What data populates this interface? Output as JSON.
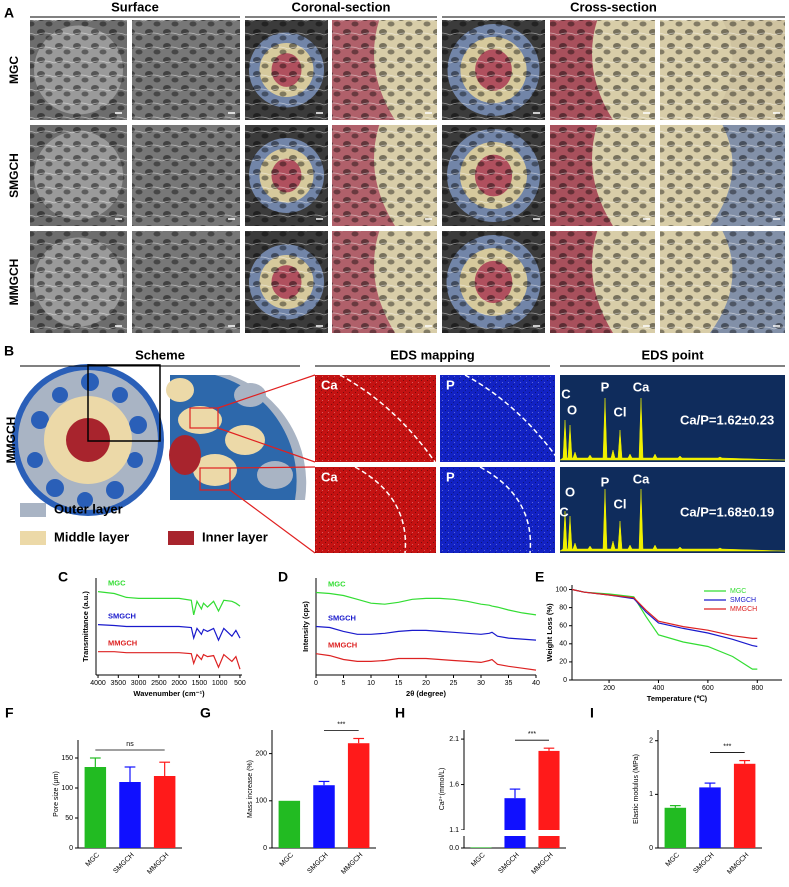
{
  "figure_a": {
    "label": "A",
    "columns": [
      "Surface",
      "Coronal-section",
      "Cross-section"
    ],
    "rows": [
      "MGC",
      "SMGCH",
      "MMGCH"
    ]
  },
  "figure_b": {
    "label": "B",
    "columns": [
      "Scheme",
      "EDS mapping",
      "EDS point"
    ],
    "row": "MMGCH",
    "legend": [
      "Outer layer",
      "Middle layer",
      "Inner layer"
    ],
    "eds_mapping": [
      [
        "Ca",
        "P"
      ],
      [
        "Ca",
        "P"
      ]
    ],
    "eds_point": [
      {
        "peaks": [
          "C",
          "O",
          "P",
          "Cl",
          "Ca"
        ],
        "ratio": "Ca/P=1.62±0.23"
      },
      {
        "peaks": [
          "C",
          "O",
          "P",
          "Cl",
          "Ca"
        ],
        "ratio": "Ca/P=1.68±0.19"
      }
    ]
  },
  "chart_data": [
    {
      "type": "line",
      "label": "C",
      "xlabel": "Wavenumber (cm⁻¹)",
      "ylabel": "Transmittance (a.u.)",
      "x": [
        4000,
        3600,
        3300,
        3000,
        2500,
        2000,
        1700,
        1640,
        1560,
        1450,
        1400,
        1300,
        1150,
        1030,
        900,
        700,
        600,
        500
      ],
      "xlim": [
        4050,
        450
      ],
      "xticks": [
        4000,
        3500,
        3000,
        2500,
        2000,
        1500,
        1000,
        500
      ],
      "ylim": [
        0,
        100
      ],
      "legend": "inline",
      "series": [
        {
          "name": "MGC",
          "color": "#33dd33",
          "values": [
            86,
            84,
            80,
            79,
            79,
            79,
            77,
            62,
            76,
            68,
            74,
            70,
            76,
            66,
            77,
            76,
            74,
            71
          ]
        },
        {
          "name": "SMGCH",
          "color": "#1a1acc",
          "values": [
            52,
            51,
            50,
            50,
            50,
            50,
            49,
            38,
            48,
            42,
            47,
            45,
            48,
            36,
            48,
            40,
            46,
            38
          ]
        },
        {
          "name": "MMGCH",
          "color": "#dd2222",
          "values": [
            24,
            24,
            23,
            23,
            23,
            23,
            22,
            12,
            21,
            16,
            21,
            19,
            20,
            8,
            21,
            14,
            19,
            6
          ]
        }
      ]
    },
    {
      "type": "line",
      "label": "D",
      "xlabel": "2θ (degree)",
      "ylabel": "Intensity (cps)",
      "x": [
        0,
        2.5,
        5,
        7.5,
        10,
        12.5,
        15,
        17.5,
        20,
        22.5,
        25,
        27.5,
        30,
        31.5,
        32,
        33,
        35,
        37.5,
        40
      ],
      "xlim": [
        0,
        40
      ],
      "xticks": [
        0,
        5,
        10,
        15,
        20,
        25,
        30,
        35,
        40
      ],
      "ylim": [
        0,
        100
      ],
      "legend": "inline",
      "series": [
        {
          "name": "MGC",
          "color": "#33dd33",
          "values": [
            85,
            84,
            82,
            78,
            74,
            73,
            75,
            78,
            79,
            79,
            78,
            76,
            73,
            72,
            71,
            70,
            67,
            64,
            62
          ]
        },
        {
          "name": "SMGCH",
          "color": "#1a1acc",
          "values": [
            50,
            49,
            45,
            42,
            42,
            43,
            45,
            46,
            46,
            45,
            44,
            43,
            42,
            43,
            44,
            40,
            38,
            37,
            36
          ]
        },
        {
          "name": "MMGCH",
          "color": "#dd2222",
          "values": [
            22,
            20,
            16,
            14,
            14,
            15,
            17,
            17,
            17,
            16,
            15,
            14,
            13,
            15,
            16,
            11,
            9,
            7,
            5
          ]
        }
      ]
    },
    {
      "type": "line",
      "label": "E",
      "xlabel": "Temperature (℃)",
      "ylabel": "Weight Loss (%)",
      "x": [
        50,
        100,
        200,
        300,
        350,
        400,
        500,
        600,
        700,
        780,
        800
      ],
      "xlim": [
        50,
        900
      ],
      "xticks": [
        200,
        400,
        600,
        800
      ],
      "ylim": [
        0,
        105
      ],
      "yticks": [
        0,
        20,
        40,
        60,
        80,
        100
      ],
      "legend": "upper right",
      "series": [
        {
          "name": "MGC",
          "color": "#33dd33",
          "values": [
            100,
            97,
            95,
            92,
            70,
            50,
            42,
            37,
            26,
            12,
            12
          ]
        },
        {
          "name": "SMGCH",
          "color": "#1a1acc",
          "values": [
            100,
            97,
            94,
            90,
            75,
            63,
            57,
            52,
            45,
            38,
            37
          ]
        },
        {
          "name": "MMGCH",
          "color": "#dd2222",
          "values": [
            100,
            97,
            94,
            91,
            77,
            65,
            59,
            55,
            49,
            46,
            46
          ]
        }
      ]
    },
    {
      "type": "bar",
      "label": "F",
      "ylabel": "Pore size (μm)",
      "categories": [
        "MGC",
        "SMGCH",
        "MMGCH"
      ],
      "values": [
        135,
        110,
        120
      ],
      "errors": [
        15,
        25,
        23
      ],
      "colors": [
        "#22bb22",
        "#1010ff",
        "#ff1a1a"
      ],
      "ylim": [
        0,
        180
      ],
      "yticks": [
        0,
        50,
        100,
        150
      ],
      "significance": {
        "text": "ns",
        "from": "MGC",
        "to": "MMGCH"
      }
    },
    {
      "type": "bar",
      "label": "G",
      "ylabel": "Mass increase (%)",
      "categories": [
        "MGC",
        "SMGCH",
        "MMGCH"
      ],
      "values": [
        100,
        133,
        222
      ],
      "errors": [
        0,
        8,
        10
      ],
      "colors": [
        "#22bb22",
        "#1010ff",
        "#ff1a1a"
      ],
      "ylim": [
        0,
        250
      ],
      "yticks": [
        0,
        100,
        200
      ],
      "significance": {
        "text": "***",
        "from": "SMGCH",
        "to": "MMGCH"
      }
    },
    {
      "type": "bar",
      "label": "H",
      "ylabel": "Ca²⁺(mmol/L)",
      "categories": [
        "MGC",
        "SMGCH",
        "MMGCH"
      ],
      "values": [
        0.005,
        1.45,
        1.97
      ],
      "errors": [
        0,
        0.1,
        0.03
      ],
      "colors": [
        "#22bb22",
        "#1010ff",
        "#ff1a1a"
      ],
      "ylim": [
        0,
        2.2
      ],
      "ybreak": [
        0.1,
        1.1
      ],
      "yticks": [
        {
          "value": 0,
          "label": "0.0"
        },
        1.1,
        1.6,
        2.1
      ],
      "significance": {
        "text": "***",
        "from": "SMGCH",
        "to": "MMGCH"
      }
    },
    {
      "type": "bar",
      "label": "I",
      "ylabel": "Elastic modulus (MPa)",
      "categories": [
        "MGC",
        "SMGCH",
        "MMGCH"
      ],
      "values": [
        0.75,
        1.13,
        1.57
      ],
      "errors": [
        0.04,
        0.08,
        0.06
      ],
      "colors": [
        "#22bb22",
        "#1010ff",
        "#ff1a1a"
      ],
      "ylim": [
        0,
        2.2
      ],
      "yticks": [
        0,
        1,
        2
      ],
      "significance": {
        "text": "***",
        "from": "SMGCH",
        "to": "MMGCH"
      }
    }
  ]
}
